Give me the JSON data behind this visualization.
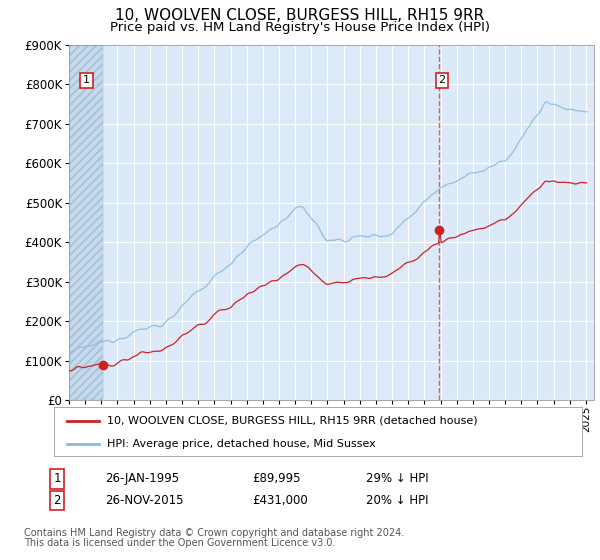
{
  "title": "10, WOOLVEN CLOSE, BURGESS HILL, RH15 9RR",
  "subtitle": "Price paid vs. HM Land Registry's House Price Index (HPI)",
  "legend_line1": "10, WOOLVEN CLOSE, BURGESS HILL, RH15 9RR (detached house)",
  "legend_line2": "HPI: Average price, detached house, Mid Sussex",
  "annotation1_date": "26-JAN-1995",
  "annotation1_price": "£89,995",
  "annotation1_hpi": "29% ↓ HPI",
  "annotation2_date": "26-NOV-2015",
  "annotation2_price": "£431,000",
  "annotation2_hpi": "20% ↓ HPI",
  "footer1": "Contains HM Land Registry data © Crown copyright and database right 2024.",
  "footer2": "This data is licensed under the Open Government Licence v3.0.",
  "sale1_year": 1995.08,
  "sale1_price": 89995,
  "sale2_year": 2015.92,
  "sale2_price": 431000,
  "ylim_max": 900000,
  "ytick_step": 100000,
  "bg_color": "#dce9f8",
  "grid_color": "#ffffff",
  "hpi_color": "#88bbdd",
  "price_color": "#cc2222",
  "dot_color": "#cc2222",
  "vline_color": "#dd4444",
  "hatch_bg": "#c8ddf0",
  "title_fontsize": 11,
  "subtitle_fontsize": 9.5
}
